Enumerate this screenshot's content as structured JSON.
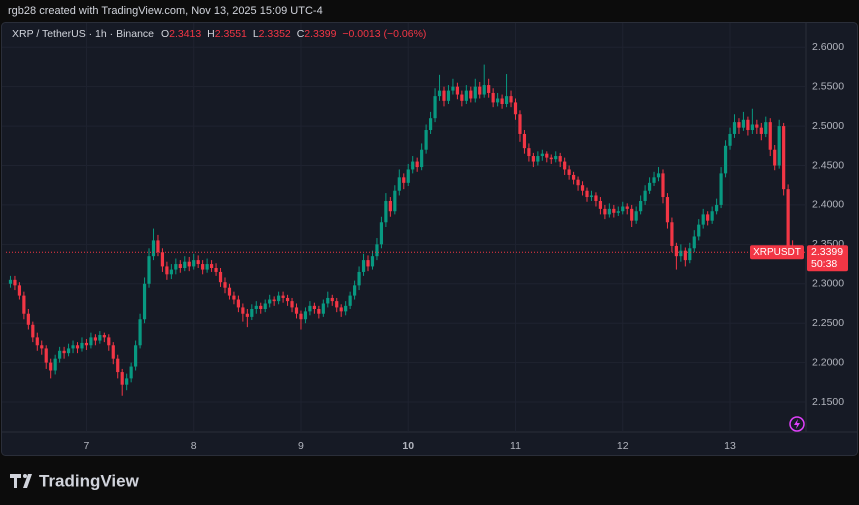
{
  "header": {
    "credit": "rgb28 created with TradingView.com, Nov 13, 2025 15:09 UTC-4"
  },
  "chart_data": {
    "type": "candlestick",
    "title": "XRP / TetherUS · 1h · Binance",
    "ohlc_labels": [
      "O",
      "H",
      "L",
      "C"
    ],
    "change": "−0.0013 (−0.06%)",
    "countdown": "50:38",
    "xlim": [
      -1,
      178
    ],
    "xticks": [
      {
        "value": 17,
        "label": "7"
      },
      {
        "value": 41,
        "label": "8"
      },
      {
        "value": 65,
        "label": "9"
      },
      {
        "value": 89,
        "label": "10"
      },
      {
        "value": 113,
        "label": "11"
      },
      {
        "value": 137,
        "label": "12"
      },
      {
        "value": 161,
        "label": "13"
      }
    ],
    "ylim": [
      2.112,
      2.632
    ],
    "yticks": [
      {
        "value": 2.15,
        "label": "2.1500"
      },
      {
        "value": 2.2,
        "label": "2.2000"
      },
      {
        "value": 2.25,
        "label": "2.2500"
      },
      {
        "value": 2.3,
        "label": "2.3000"
      },
      {
        "value": 2.35,
        "label": "2.3500"
      },
      {
        "value": 2.4,
        "label": "2.4000"
      },
      {
        "value": 2.45,
        "label": "2.4500"
      },
      {
        "value": 2.5,
        "label": "2.5000"
      },
      {
        "value": 2.55,
        "label": "2.5500"
      },
      {
        "value": 2.6,
        "label": "2.6000"
      }
    ],
    "grid": true,
    "series": [
      {
        "name": "XRPUSDT",
        "up_color": "#089981",
        "down_color": "#f23645",
        "ohlc": [
          [
            2.3,
            2.31,
            2.295,
            2.305
          ],
          [
            2.305,
            2.31,
            2.292,
            2.298
          ],
          [
            2.298,
            2.302,
            2.28,
            2.285
          ],
          [
            2.285,
            2.29,
            2.255,
            2.262
          ],
          [
            2.262,
            2.268,
            2.242,
            2.248
          ],
          [
            2.248,
            2.252,
            2.226,
            2.232
          ],
          [
            2.232,
            2.238,
            2.215,
            2.222
          ],
          [
            2.222,
            2.228,
            2.21,
            2.218
          ],
          [
            2.218,
            2.222,
            2.192,
            2.2
          ],
          [
            2.2,
            2.205,
            2.18,
            2.19
          ],
          [
            2.19,
            2.21,
            2.185,
            2.205
          ],
          [
            2.205,
            2.22,
            2.2,
            2.215
          ],
          [
            2.215,
            2.22,
            2.205,
            2.212
          ],
          [
            2.212,
            2.224,
            2.208,
            2.218
          ],
          [
            2.218,
            2.228,
            2.212,
            2.222
          ],
          [
            2.222,
            2.226,
            2.212,
            2.218
          ],
          [
            2.218,
            2.232,
            2.214,
            2.225
          ],
          [
            2.225,
            2.23,
            2.216,
            2.222
          ],
          [
            2.222,
            2.238,
            2.218,
            2.232
          ],
          [
            2.232,
            2.236,
            2.222,
            2.228
          ],
          [
            2.228,
            2.24,
            2.224,
            2.235
          ],
          [
            2.235,
            2.238,
            2.226,
            2.232
          ],
          [
            2.232,
            2.236,
            2.215,
            2.222
          ],
          [
            2.222,
            2.226,
            2.198,
            2.205
          ],
          [
            2.205,
            2.21,
            2.18,
            2.188
          ],
          [
            2.188,
            2.192,
            2.158,
            2.172
          ],
          [
            2.172,
            2.186,
            2.165,
            2.18
          ],
          [
            2.18,
            2.2,
            2.175,
            2.195
          ],
          [
            2.195,
            2.228,
            2.19,
            2.222
          ],
          [
            2.222,
            2.262,
            2.218,
            2.255
          ],
          [
            2.255,
            2.308,
            2.25,
            2.3
          ],
          [
            2.3,
            2.345,
            2.295,
            2.335
          ],
          [
            2.335,
            2.37,
            2.33,
            2.355
          ],
          [
            2.355,
            2.362,
            2.335,
            2.34
          ],
          [
            2.34,
            2.345,
            2.315,
            2.322
          ],
          [
            2.322,
            2.328,
            2.305,
            2.312
          ],
          [
            2.312,
            2.325,
            2.306,
            2.318
          ],
          [
            2.318,
            2.332,
            2.312,
            2.325
          ],
          [
            2.325,
            2.33,
            2.314,
            2.32
          ],
          [
            2.32,
            2.335,
            2.316,
            2.328
          ],
          [
            2.328,
            2.334,
            2.316,
            2.322
          ],
          [
            2.322,
            2.338,
            2.318,
            2.33
          ],
          [
            2.33,
            2.336,
            2.32,
            2.325
          ],
          [
            2.325,
            2.33,
            2.312,
            2.318
          ],
          [
            2.318,
            2.332,
            2.314,
            2.325
          ],
          [
            2.325,
            2.33,
            2.315,
            2.32
          ],
          [
            2.32,
            2.326,
            2.31,
            2.315
          ],
          [
            2.315,
            2.32,
            2.296,
            2.302
          ],
          [
            2.302,
            2.308,
            2.288,
            2.295
          ],
          [
            2.295,
            2.3,
            2.28,
            2.285
          ],
          [
            2.285,
            2.29,
            2.274,
            2.28
          ],
          [
            2.28,
            2.285,
            2.264,
            2.27
          ],
          [
            2.27,
            2.275,
            2.252,
            2.262
          ],
          [
            2.262,
            2.268,
            2.245,
            2.258
          ],
          [
            2.258,
            2.274,
            2.254,
            2.268
          ],
          [
            2.268,
            2.278,
            2.262,
            2.272
          ],
          [
            2.272,
            2.276,
            2.262,
            2.268
          ],
          [
            2.268,
            2.28,
            2.264,
            2.275
          ],
          [
            2.275,
            2.286,
            2.27,
            2.28
          ],
          [
            2.28,
            2.284,
            2.272,
            2.278
          ],
          [
            2.278,
            2.29,
            2.274,
            2.285
          ],
          [
            2.285,
            2.29,
            2.276,
            2.282
          ],
          [
            2.282,
            2.286,
            2.272,
            2.278
          ],
          [
            2.278,
            2.282,
            2.264,
            2.27
          ],
          [
            2.27,
            2.275,
            2.256,
            2.262
          ],
          [
            2.262,
            2.266,
            2.242,
            2.255
          ],
          [
            2.255,
            2.27,
            2.25,
            2.265
          ],
          [
            2.265,
            2.278,
            2.26,
            2.272
          ],
          [
            2.272,
            2.276,
            2.262,
            2.268
          ],
          [
            2.268,
            2.272,
            2.256,
            2.262
          ],
          [
            2.262,
            2.28,
            2.258,
            2.275
          ],
          [
            2.275,
            2.29,
            2.27,
            2.282
          ],
          [
            2.282,
            2.286,
            2.272,
            2.278
          ],
          [
            2.278,
            2.282,
            2.264,
            2.27
          ],
          [
            2.27,
            2.274,
            2.258,
            2.265
          ],
          [
            2.265,
            2.278,
            2.26,
            2.272
          ],
          [
            2.272,
            2.29,
            2.268,
            2.285
          ],
          [
            2.285,
            2.304,
            2.28,
            2.298
          ],
          [
            2.298,
            2.322,
            2.292,
            2.315
          ],
          [
            2.315,
            2.338,
            2.31,
            2.33
          ],
          [
            2.33,
            2.336,
            2.316,
            2.322
          ],
          [
            2.322,
            2.342,
            2.318,
            2.335
          ],
          [
            2.335,
            2.358,
            2.33,
            2.35
          ],
          [
            2.35,
            2.385,
            2.345,
            2.378
          ],
          [
            2.378,
            2.415,
            2.372,
            2.405
          ],
          [
            2.405,
            2.41,
            2.385,
            2.392
          ],
          [
            2.392,
            2.425,
            2.388,
            2.418
          ],
          [
            2.418,
            2.445,
            2.412,
            2.435
          ],
          [
            2.435,
            2.44,
            2.42,
            2.428
          ],
          [
            2.428,
            2.452,
            2.424,
            2.445
          ],
          [
            2.445,
            2.462,
            2.44,
            2.455
          ],
          [
            2.455,
            2.46,
            2.442,
            2.448
          ],
          [
            2.448,
            2.478,
            2.444,
            2.47
          ],
          [
            2.47,
            2.502,
            2.465,
            2.495
          ],
          [
            2.495,
            2.518,
            2.49,
            2.51
          ],
          [
            2.51,
            2.548,
            2.505,
            2.538
          ],
          [
            2.538,
            2.565,
            2.532,
            2.545
          ],
          [
            2.545,
            2.55,
            2.525,
            2.532
          ],
          [
            2.532,
            2.552,
            2.528,
            2.545
          ],
          [
            2.545,
            2.56,
            2.54,
            2.55
          ],
          [
            2.55,
            2.555,
            2.534,
            2.54
          ],
          [
            2.54,
            2.545,
            2.525,
            2.532
          ],
          [
            2.532,
            2.552,
            2.528,
            2.545
          ],
          [
            2.545,
            2.55,
            2.53,
            2.535
          ],
          [
            2.535,
            2.56,
            2.53,
            2.55
          ],
          [
            2.55,
            2.556,
            2.535,
            2.54
          ],
          [
            2.54,
            2.578,
            2.536,
            2.552
          ],
          [
            2.552,
            2.56,
            2.536,
            2.542
          ],
          [
            2.542,
            2.548,
            2.524,
            2.53
          ],
          [
            2.53,
            2.542,
            2.525,
            2.535
          ],
          [
            2.535,
            2.54,
            2.522,
            2.528
          ],
          [
            2.528,
            2.566,
            2.524,
            2.538
          ],
          [
            2.538,
            2.545,
            2.524,
            2.53
          ],
          [
            2.53,
            2.535,
            2.508,
            2.515
          ],
          [
            2.515,
            2.52,
            2.48,
            2.49
          ],
          [
            2.49,
            2.495,
            2.465,
            2.472
          ],
          [
            2.472,
            2.478,
            2.455,
            2.462
          ],
          [
            2.462,
            2.466,
            2.448,
            2.455
          ],
          [
            2.455,
            2.468,
            2.45,
            2.462
          ],
          [
            2.462,
            2.47,
            2.456,
            2.465
          ],
          [
            2.465,
            2.468,
            2.454,
            2.46
          ],
          [
            2.46,
            2.464,
            2.452,
            2.458
          ],
          [
            2.458,
            2.468,
            2.454,
            2.462
          ],
          [
            2.462,
            2.466,
            2.448,
            2.455
          ],
          [
            2.455,
            2.46,
            2.438,
            2.445
          ],
          [
            2.445,
            2.45,
            2.432,
            2.438
          ],
          [
            2.438,
            2.442,
            2.426,
            2.432
          ],
          [
            2.432,
            2.436,
            2.418,
            2.425
          ],
          [
            2.425,
            2.43,
            2.412,
            2.418
          ],
          [
            2.418,
            2.422,
            2.404,
            2.41
          ],
          [
            2.41,
            2.418,
            2.405,
            2.412
          ],
          [
            2.412,
            2.416,
            2.398,
            2.405
          ],
          [
            2.405,
            2.41,
            2.388,
            2.395
          ],
          [
            2.395,
            2.4,
            2.382,
            2.388
          ],
          [
            2.388,
            2.402,
            2.384,
            2.395
          ],
          [
            2.395,
            2.4,
            2.384,
            2.39
          ],
          [
            2.39,
            2.398,
            2.386,
            2.392
          ],
          [
            2.392,
            2.404,
            2.388,
            2.398
          ],
          [
            2.398,
            2.402,
            2.388,
            2.395
          ],
          [
            2.395,
            2.4,
            2.372,
            2.38
          ],
          [
            2.38,
            2.398,
            2.376,
            2.392
          ],
          [
            2.392,
            2.412,
            2.388,
            2.405
          ],
          [
            2.405,
            2.425,
            2.4,
            2.418
          ],
          [
            2.418,
            2.435,
            2.414,
            2.428
          ],
          [
            2.428,
            2.442,
            2.424,
            2.435
          ],
          [
            2.435,
            2.448,
            2.43,
            2.44
          ],
          [
            2.44,
            2.445,
            2.402,
            2.41
          ],
          [
            2.41,
            2.415,
            2.37,
            2.378
          ],
          [
            2.378,
            2.384,
            2.34,
            2.348
          ],
          [
            2.348,
            2.352,
            2.318,
            2.335
          ],
          [
            2.335,
            2.35,
            2.328,
            2.342
          ],
          [
            2.342,
            2.346,
            2.322,
            2.33
          ],
          [
            2.33,
            2.352,
            2.326,
            2.345
          ],
          [
            2.345,
            2.368,
            2.34,
            2.36
          ],
          [
            2.36,
            2.382,
            2.355,
            2.375
          ],
          [
            2.375,
            2.395,
            2.37,
            2.388
          ],
          [
            2.388,
            2.392,
            2.374,
            2.38
          ],
          [
            2.38,
            2.398,
            2.376,
            2.392
          ],
          [
            2.392,
            2.408,
            2.388,
            2.4
          ],
          [
            2.4,
            2.448,
            2.396,
            2.44
          ],
          [
            2.44,
            2.482,
            2.435,
            2.475
          ],
          [
            2.475,
            2.498,
            2.47,
            2.49
          ],
          [
            2.49,
            2.515,
            2.485,
            2.505
          ],
          [
            2.505,
            2.51,
            2.49,
            2.498
          ],
          [
            2.498,
            2.518,
            2.494,
            2.508
          ],
          [
            2.508,
            2.512,
            2.488,
            2.495
          ],
          [
            2.495,
            2.522,
            2.49,
            2.502
          ],
          [
            2.502,
            2.508,
            2.49,
            2.498
          ],
          [
            2.498,
            2.504,
            2.482,
            2.49
          ],
          [
            2.49,
            2.512,
            2.486,
            2.505
          ],
          [
            2.505,
            2.51,
            2.462,
            2.47
          ],
          [
            2.47,
            2.476,
            2.444,
            2.45
          ],
          [
            2.45,
            2.508,
            2.446,
            2.5
          ],
          [
            2.5,
            2.504,
            2.412,
            2.42
          ],
          [
            2.42,
            2.426,
            2.336,
            2.3413
          ],
          [
            2.3413,
            2.3551,
            2.3352,
            2.3399
          ]
        ]
      }
    ]
  },
  "footer": {
    "brand": "TradingView"
  }
}
